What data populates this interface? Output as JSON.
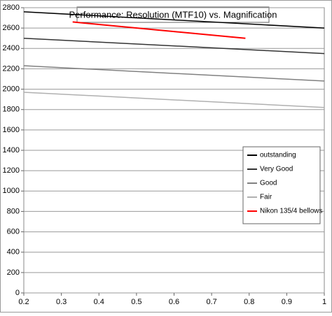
{
  "chart_data": {
    "type": "line",
    "title": "Performance: Resolution (MTF10) vs. Magnification",
    "xlim": [
      0.2,
      1
    ],
    "xticks": [
      0.2,
      0.3,
      0.4,
      0.5,
      0.6,
      0.7,
      0.8,
      0.9,
      1
    ],
    "ylim": [
      0,
      2800
    ],
    "yticks": [
      0,
      200,
      400,
      600,
      800,
      1000,
      1200,
      1400,
      1600,
      1800,
      2000,
      2200,
      2400,
      2600,
      2800
    ],
    "grid": true,
    "legend": "right",
    "series": [
      {
        "name": "outstanding",
        "color": "#000000",
        "x": [
          0.2,
          1
        ],
        "values": [
          2760,
          2600
        ]
      },
      {
        "name": "Very Good",
        "color": "#333333",
        "x": [
          0.2,
          1
        ],
        "values": [
          2500,
          2350
        ]
      },
      {
        "name": "Good",
        "color": "#808080",
        "x": [
          0.2,
          1
        ],
        "values": [
          2230,
          2080
        ]
      },
      {
        "name": "Fair",
        "color": "#b0b0b0",
        "x": [
          0.2,
          1
        ],
        "values": [
          1970,
          1820
        ]
      },
      {
        "name": "Nikon 135/4 bellows",
        "color": "#ff0000",
        "x": [
          0.33,
          0.79
        ],
        "values": [
          2660,
          2500
        ]
      }
    ]
  }
}
